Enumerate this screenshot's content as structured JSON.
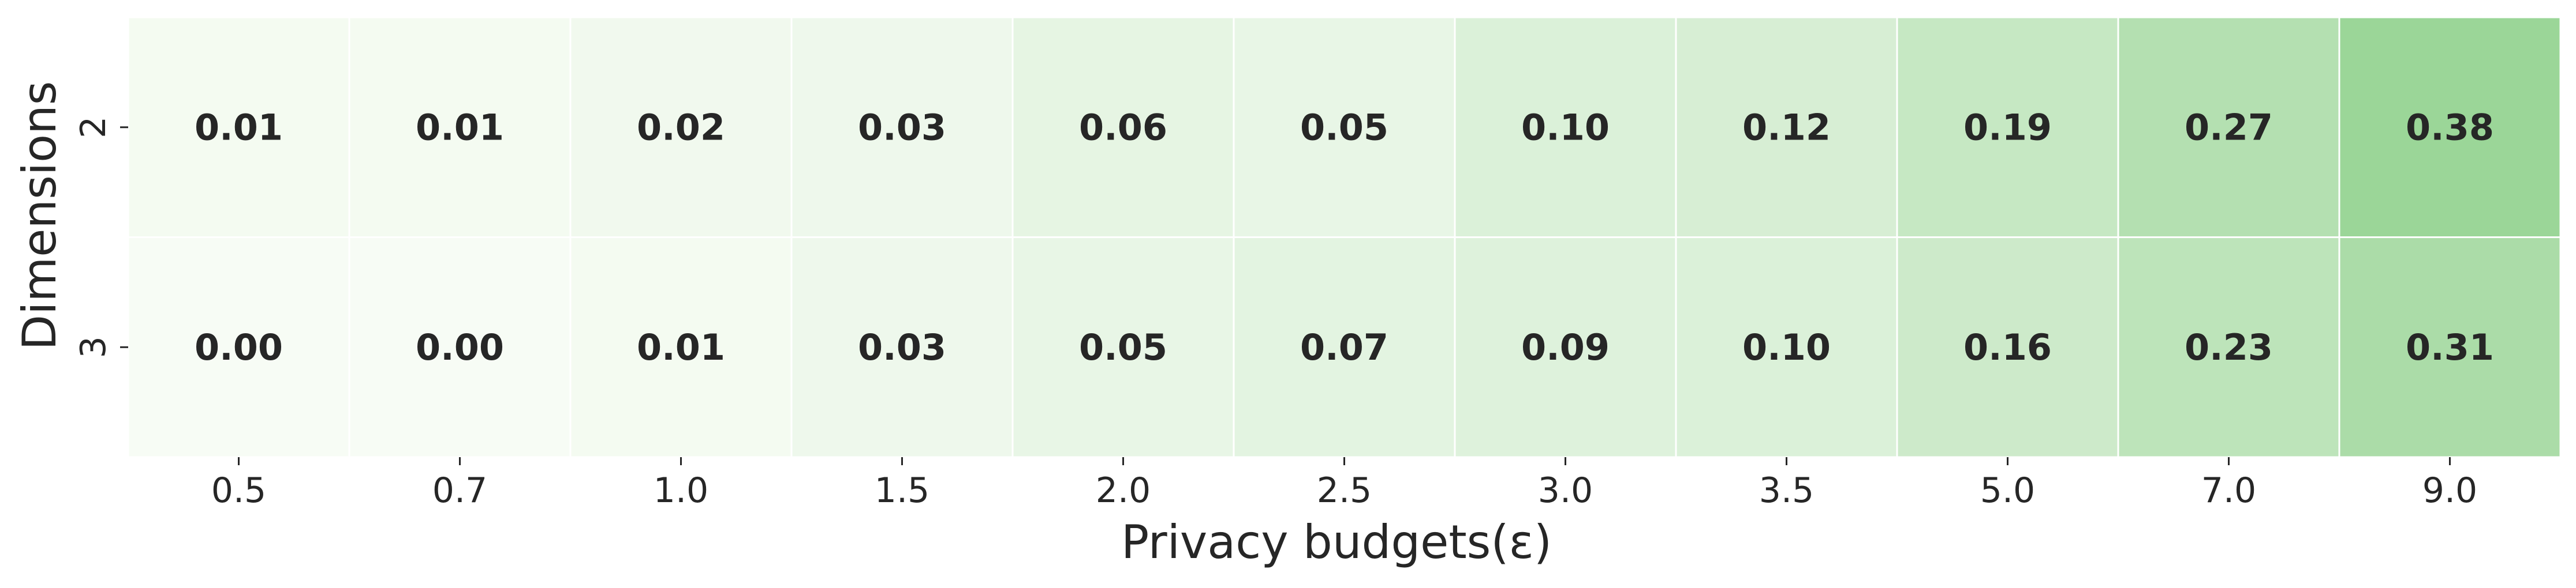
{
  "chart_data": {
    "type": "heatmap",
    "xlabel": "Privacy budgets(ε)",
    "ylabel": "Dimensions",
    "x_categories": [
      "0.5",
      "0.7",
      "1.0",
      "1.5",
      "2.0",
      "2.5",
      "3.0",
      "3.5",
      "5.0",
      "7.0",
      "9.0"
    ],
    "y_categories": [
      "2",
      "3"
    ],
    "values": [
      [
        0.01,
        0.01,
        0.02,
        0.03,
        0.06,
        0.05,
        0.1,
        0.12,
        0.19,
        0.27,
        0.38
      ],
      [
        0.0,
        0.0,
        0.01,
        0.03,
        0.05,
        0.07,
        0.09,
        0.1,
        0.16,
        0.23,
        0.31
      ]
    ],
    "value_range": [
      0,
      0.4
    ],
    "colormap": "Greens",
    "color_low": "#f7fcf5",
    "color_high": "#97d494",
    "gridline_color": "#ffffff",
    "grid": false
  }
}
